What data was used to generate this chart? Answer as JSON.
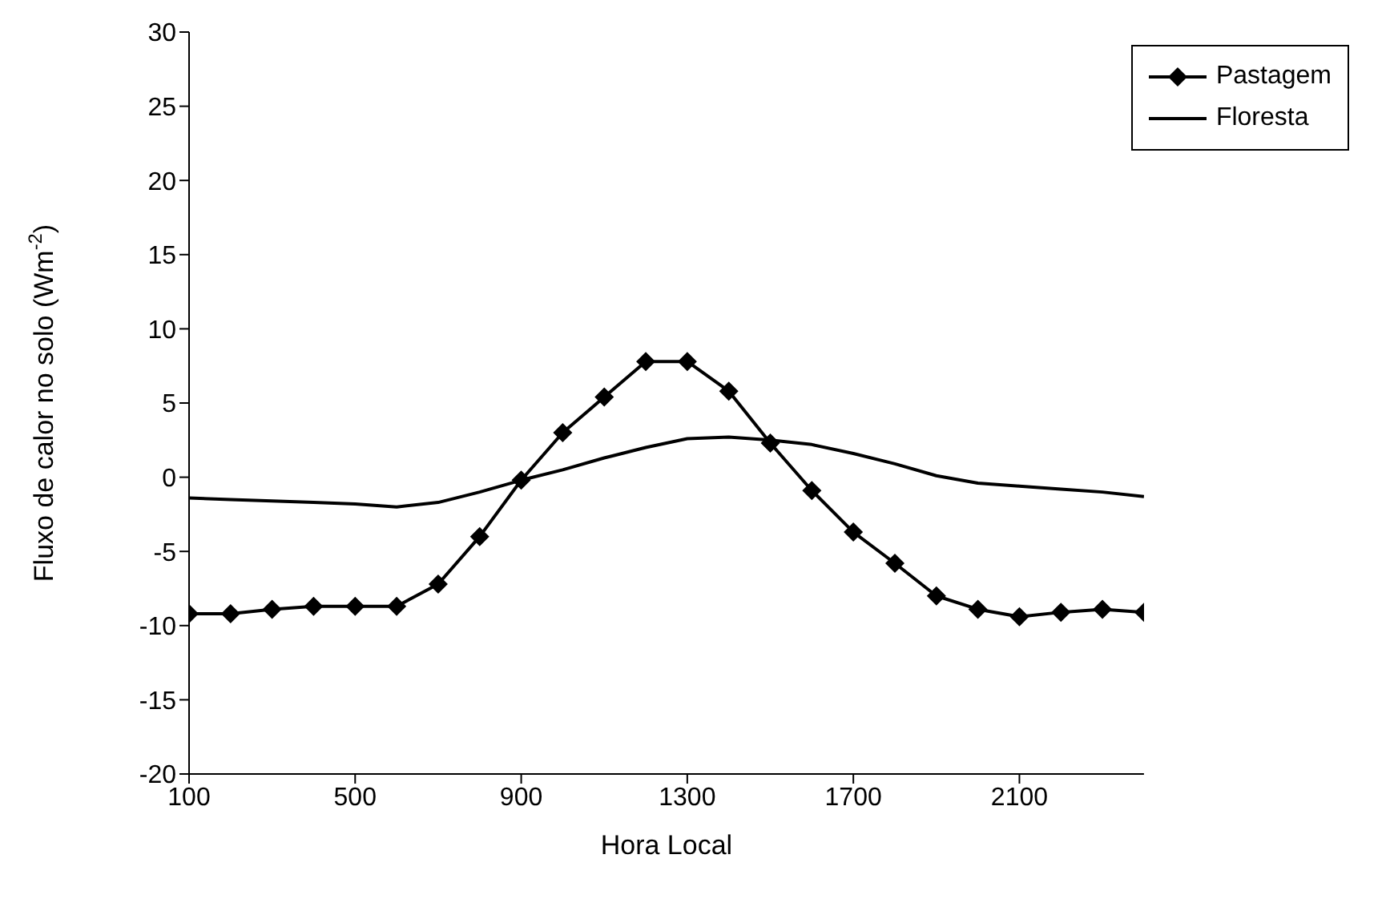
{
  "chart_data": {
    "type": "line",
    "xlabel": "Hora Local",
    "ylabel": "Fluxo de calor no solo (Wm$^{-2}$)",
    "x": [
      100,
      200,
      300,
      400,
      500,
      600,
      700,
      800,
      900,
      1000,
      1100,
      1200,
      1300,
      1400,
      1500,
      1600,
      1700,
      1800,
      1900,
      2000,
      2100,
      2200,
      2300,
      2400
    ],
    "series": [
      {
        "name": "Pastagem",
        "color": "#000000",
        "marker": "diamond",
        "values": [
          -9.2,
          -9.2,
          -8.9,
          -8.7,
          -8.7,
          -8.7,
          -7.2,
          -4.0,
          -0.2,
          3.0,
          5.4,
          7.8,
          7.8,
          5.8,
          2.3,
          -0.9,
          -3.7,
          -5.8,
          -8.0,
          -8.9,
          -9.4,
          -9.1,
          -8.9,
          -9.1
        ]
      },
      {
        "name": "Floresta",
        "color": "#000000",
        "marker": "none",
        "values": [
          -1.4,
          -1.5,
          -1.6,
          -1.7,
          -1.8,
          -2.0,
          -1.7,
          -1.0,
          -0.2,
          0.5,
          1.3,
          2.0,
          2.6,
          2.7,
          2.5,
          2.2,
          1.6,
          0.9,
          0.1,
          -0.4,
          -0.6,
          -0.8,
          -1.0,
          -1.3
        ]
      }
    ],
    "xlim": [
      100,
      2400
    ],
    "xticks": [
      100,
      500,
      900,
      1300,
      1700,
      2100
    ],
    "ylim": [
      -20,
      30
    ],
    "yticks": [
      -20,
      -15,
      -10,
      -5,
      0,
      5,
      10,
      15,
      20,
      25,
      30
    ],
    "grid": false,
    "legend": "top right"
  }
}
